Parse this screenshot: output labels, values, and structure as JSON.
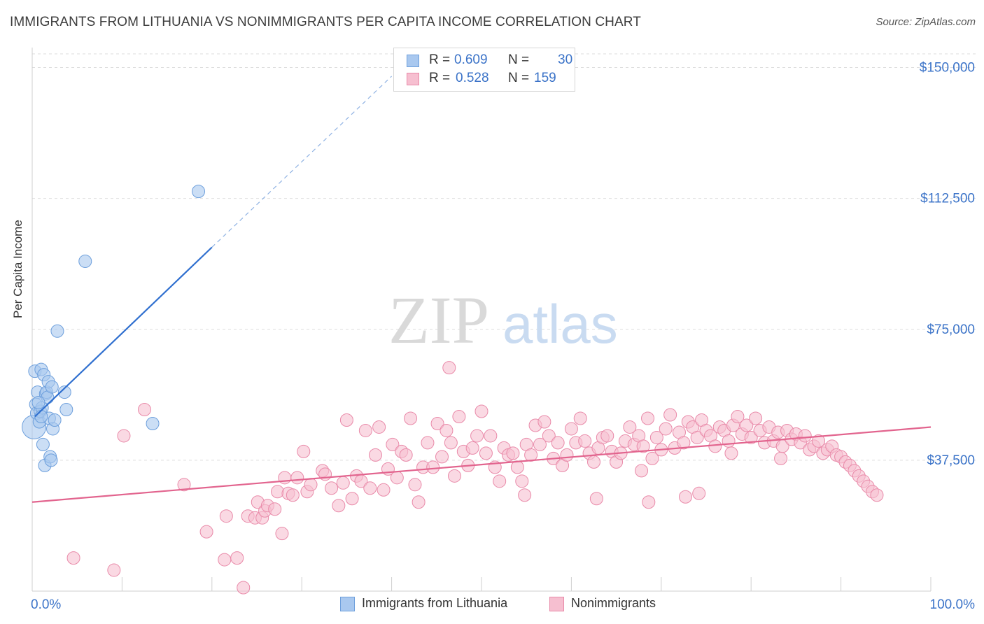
{
  "title": "IMMIGRANTS FROM LITHUANIA VS NONIMMIGRANTS PER CAPITA INCOME CORRELATION CHART",
  "source": "Source: ZipAtlas.com",
  "watermark": {
    "zip": "ZIP",
    "atlas": "atlas"
  },
  "colors": {
    "blue_fill": "#a9c8ef",
    "blue_stroke": "#6d9fdc",
    "blue_line": "#2f6fcf",
    "pink_fill": "#f6bfd0",
    "pink_stroke": "#e98aa9",
    "pink_line": "#e2648e",
    "axis_label": "#3b73c8",
    "grid": "#dedede"
  },
  "legend": {
    "series1": {
      "r_label": "R =",
      "r_value": "0.609",
      "n_label": "N =",
      "n_value": "30"
    },
    "series2": {
      "r_label": "R =",
      "r_value": "0.528",
      "n_label": "N =",
      "n_value": "159"
    }
  },
  "bottom_legend": {
    "series1": "Immigrants from Lithuania",
    "series2": "Nonimmigrants"
  },
  "chart_data": {
    "type": "scatter",
    "xlabel": "",
    "ylabel": "Per Capita Income",
    "xlim": [
      0,
      100
    ],
    "ylim": [
      0,
      150000
    ],
    "x_tick_labels": [
      "0.0%",
      "100.0%"
    ],
    "y_ticks": [
      37500,
      75000,
      112500,
      150000
    ],
    "y_tick_labels": [
      "$37,500",
      "$75,000",
      "$112,500",
      "$150,000"
    ],
    "series": [
      {
        "name": "Immigrants from Lithuania",
        "r": 0.609,
        "n": 30,
        "trend": {
          "x0": 0.3,
          "y0": 50000,
          "x1": 20,
          "y1": 98500,
          "dash_x1": 40,
          "dash_y1": 147500
        },
        "points": [
          [
            0.2,
            47000,
            3
          ],
          [
            0.3,
            63000,
            1
          ],
          [
            0.4,
            53500,
            1
          ],
          [
            0.5,
            51000,
            1
          ],
          [
            0.6,
            57000,
            1
          ],
          [
            0.8,
            48500,
            1
          ],
          [
            0.9,
            51500,
            1
          ],
          [
            1.0,
            63500,
            1
          ],
          [
            1.1,
            52500,
            1
          ],
          [
            1.2,
            42000,
            1
          ],
          [
            1.3,
            62000,
            1
          ],
          [
            1.4,
            36000,
            1
          ],
          [
            1.5,
            56500,
            1
          ],
          [
            1.6,
            57000,
            1
          ],
          [
            1.7,
            55500,
            1
          ],
          [
            1.8,
            60000,
            1
          ],
          [
            1.9,
            49500,
            1
          ],
          [
            2.0,
            38500,
            1
          ],
          [
            2.1,
            37500,
            1
          ],
          [
            2.2,
            58500,
            1
          ],
          [
            2.3,
            46500,
            1
          ],
          [
            2.5,
            49000,
            1
          ],
          [
            2.8,
            74500,
            1
          ],
          [
            3.6,
            57000,
            1
          ],
          [
            3.8,
            52000,
            1
          ],
          [
            5.9,
            94500,
            1
          ],
          [
            13.4,
            48000,
            1
          ],
          [
            18.5,
            114500,
            1
          ],
          [
            0.7,
            54000,
            1
          ],
          [
            1.0,
            50000,
            1
          ]
        ]
      },
      {
        "name": "Nonimmigrants",
        "r": 0.528,
        "n": 159,
        "trend": {
          "x0": 0,
          "y0": 25500,
          "x1": 100,
          "y1": 47000
        },
        "points": [
          [
            4.6,
            9500
          ],
          [
            9.1,
            6000
          ],
          [
            10.2,
            44500
          ],
          [
            12.5,
            52000
          ],
          [
            16.9,
            30500
          ],
          [
            19.4,
            17000
          ],
          [
            21.4,
            9000
          ],
          [
            21.6,
            21500
          ],
          [
            22.8,
            9500
          ],
          [
            23.5,
            1000
          ],
          [
            24.0,
            21500
          ],
          [
            24.8,
            21000
          ],
          [
            25.1,
            25500
          ],
          [
            25.6,
            21000
          ],
          [
            25.9,
            23000
          ],
          [
            26.2,
            24500
          ],
          [
            27.0,
            23500
          ],
          [
            27.3,
            28500
          ],
          [
            27.8,
            16500
          ],
          [
            28.1,
            32500
          ],
          [
            28.5,
            28000
          ],
          [
            29.0,
            27500
          ],
          [
            29.5,
            32500
          ],
          [
            30.2,
            40000
          ],
          [
            30.6,
            28500
          ],
          [
            31.0,
            30500
          ],
          [
            32.3,
            34500
          ],
          [
            32.6,
            33500
          ],
          [
            33.3,
            29500
          ],
          [
            34.1,
            24500
          ],
          [
            34.6,
            31000
          ],
          [
            35.0,
            49000
          ],
          [
            35.6,
            26500
          ],
          [
            36.1,
            33000
          ],
          [
            36.6,
            31500
          ],
          [
            37.1,
            46000
          ],
          [
            37.6,
            29500
          ],
          [
            38.2,
            39000
          ],
          [
            38.6,
            47000
          ],
          [
            39.1,
            29000
          ],
          [
            39.6,
            35000
          ],
          [
            40.1,
            42000
          ],
          [
            40.6,
            32500
          ],
          [
            41.1,
            40000
          ],
          [
            41.6,
            39000
          ],
          [
            42.1,
            49500
          ],
          [
            42.6,
            30500
          ],
          [
            43.0,
            25500
          ],
          [
            43.5,
            35500
          ],
          [
            44.0,
            42500
          ],
          [
            44.6,
            35500
          ],
          [
            45.1,
            48000
          ],
          [
            45.6,
            38500
          ],
          [
            46.1,
            46000
          ],
          [
            46.6,
            42500
          ],
          [
            47.0,
            33000
          ],
          [
            47.5,
            50000
          ],
          [
            48.0,
            40000
          ],
          [
            48.5,
            36000
          ],
          [
            49.0,
            41000
          ],
          [
            49.5,
            44500
          ],
          [
            50.0,
            51500
          ],
          [
            50.5,
            39500
          ],
          [
            51.0,
            44500
          ],
          [
            51.5,
            35500
          ],
          [
            52.0,
            31500
          ],
          [
            52.5,
            41000
          ],
          [
            53.0,
            39000
          ],
          [
            53.5,
            39500
          ],
          [
            54.0,
            35500
          ],
          [
            54.5,
            31500
          ],
          [
            55.0,
            42000
          ],
          [
            55.5,
            39000
          ],
          [
            56.0,
            47500
          ],
          [
            56.5,
            42000
          ],
          [
            57.0,
            48500
          ],
          [
            57.5,
            44500
          ],
          [
            58.0,
            38000
          ],
          [
            58.5,
            42500
          ],
          [
            59.0,
            36000
          ],
          [
            59.5,
            39000
          ],
          [
            60.0,
            46500
          ],
          [
            60.5,
            42500
          ],
          [
            61.0,
            49500
          ],
          [
            61.5,
            43000
          ],
          [
            62.0,
            39500
          ],
          [
            62.5,
            37000
          ],
          [
            63.0,
            41000
          ],
          [
            63.5,
            44000
          ],
          [
            64.0,
            44500
          ],
          [
            64.5,
            40000
          ],
          [
            65.0,
            37000
          ],
          [
            65.5,
            39500
          ],
          [
            66.0,
            43000
          ],
          [
            66.5,
            47000
          ],
          [
            67.0,
            42000
          ],
          [
            67.5,
            44500
          ],
          [
            68.0,
            41500
          ],
          [
            68.5,
            49500
          ],
          [
            69.0,
            38000
          ],
          [
            69.5,
            44000
          ],
          [
            70.0,
            40500
          ],
          [
            70.5,
            46500
          ],
          [
            71.0,
            50500
          ],
          [
            71.5,
            41000
          ],
          [
            72.0,
            45500
          ],
          [
            72.5,
            42500
          ],
          [
            73.0,
            48500
          ],
          [
            73.5,
            47000
          ],
          [
            74.0,
            44000
          ],
          [
            74.5,
            49000
          ],
          [
            75.0,
            46000
          ],
          [
            75.5,
            44500
          ],
          [
            76.0,
            41500
          ],
          [
            76.5,
            47000
          ],
          [
            77.0,
            46000
          ],
          [
            77.5,
            43000
          ],
          [
            78.0,
            47500
          ],
          [
            78.5,
            50000
          ],
          [
            79.0,
            45000
          ],
          [
            79.5,
            47500
          ],
          [
            80.0,
            44000
          ],
          [
            80.5,
            49500
          ],
          [
            81.0,
            46000
          ],
          [
            81.5,
            42500
          ],
          [
            82.0,
            47000
          ],
          [
            82.5,
            43000
          ],
          [
            83.0,
            45500
          ],
          [
            83.5,
            41500
          ],
          [
            84.0,
            46000
          ],
          [
            84.5,
            43500
          ],
          [
            85.0,
            45000
          ],
          [
            85.5,
            42500
          ],
          [
            86.0,
            44500
          ],
          [
            86.5,
            40500
          ],
          [
            87.0,
            41500
          ],
          [
            87.5,
            43000
          ],
          [
            88.0,
            39500
          ],
          [
            88.5,
            40500
          ],
          [
            89.0,
            41500
          ],
          [
            89.5,
            39000
          ],
          [
            90.0,
            38500
          ],
          [
            90.5,
            37000
          ],
          [
            91.0,
            36000
          ],
          [
            91.5,
            34500
          ],
          [
            92.0,
            33000
          ],
          [
            92.5,
            31500
          ],
          [
            93.0,
            30000
          ],
          [
            93.5,
            28500
          ],
          [
            94.0,
            27500
          ],
          [
            74.2,
            28000
          ],
          [
            72.7,
            27000
          ],
          [
            67.8,
            34500
          ],
          [
            77.8,
            39500
          ],
          [
            62.8,
            26500
          ],
          [
            68.6,
            25500
          ],
          [
            83.3,
            38000
          ],
          [
            54.8,
            27500
          ],
          [
            46.4,
            64000
          ]
        ]
      }
    ]
  }
}
